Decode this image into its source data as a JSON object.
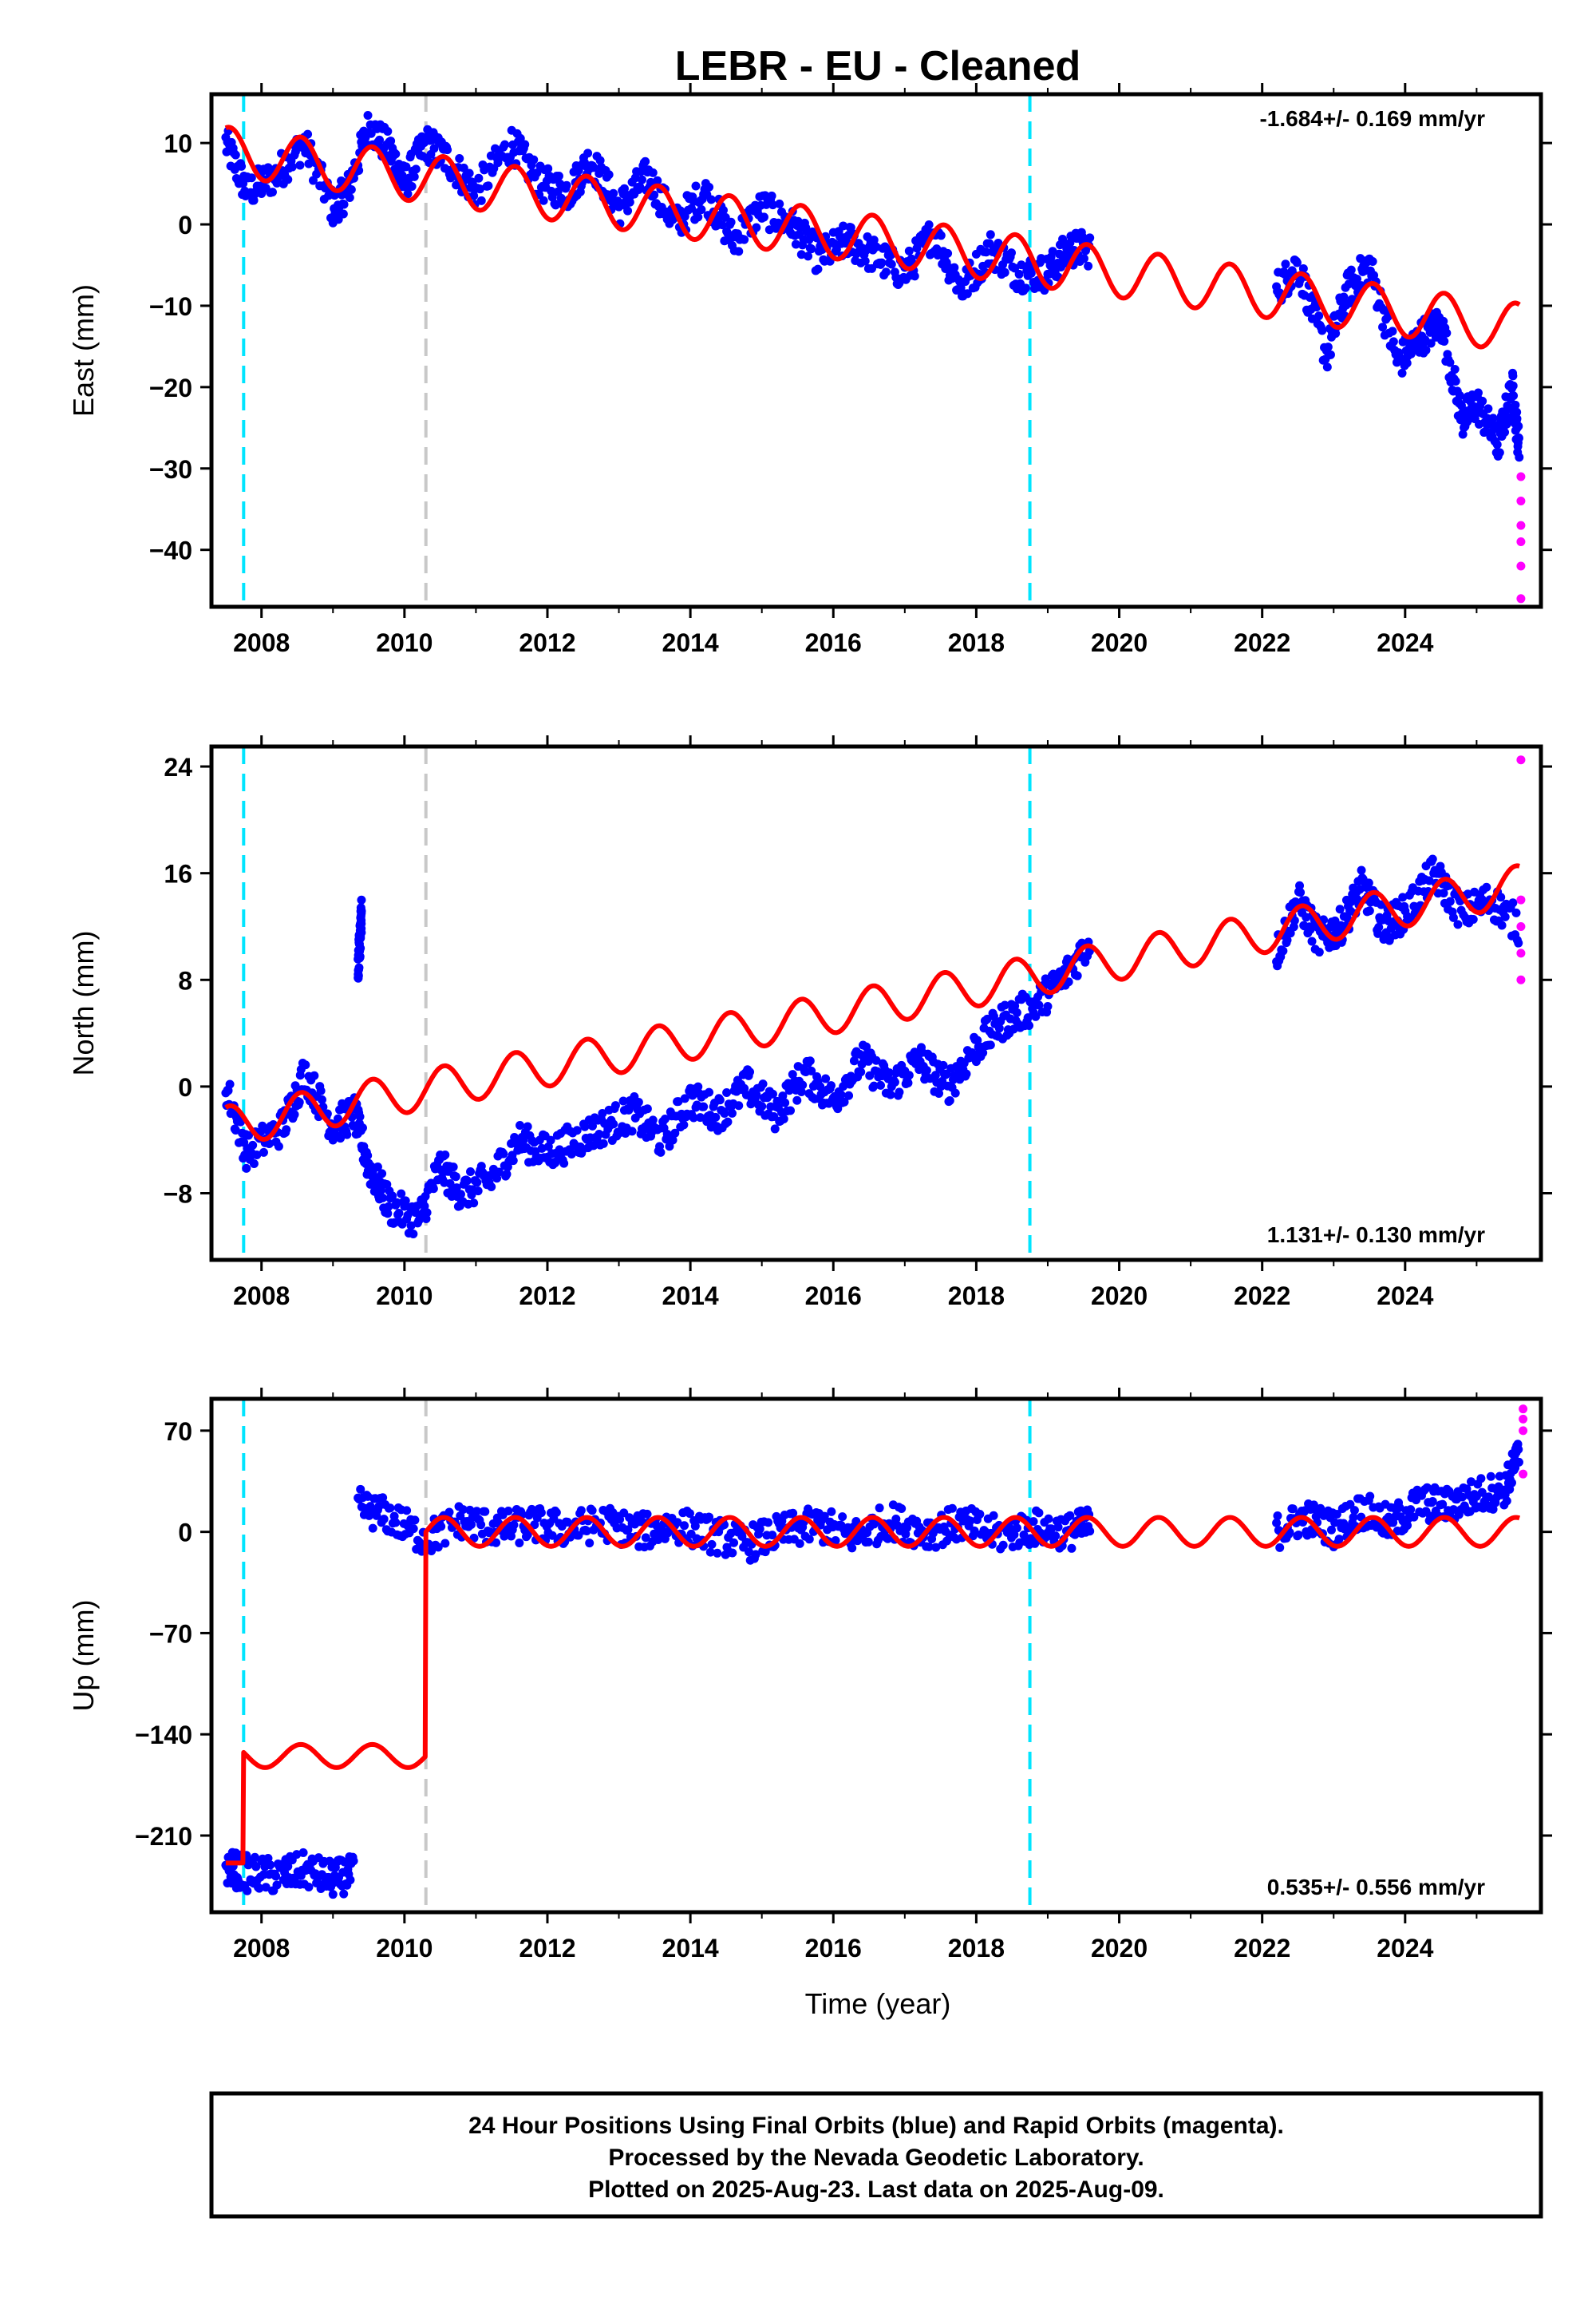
{
  "title": "LEBR  - EU - Cleaned",
  "xlabel": "Time (year)",
  "colors": {
    "final": "#0000ff",
    "rapid": "#ff00ff",
    "model": "#ff0000",
    "antenna": "#00e5ff",
    "offset": "#c8c8c8"
  },
  "chart_data": [
    {
      "type": "scatter",
      "component": "east",
      "ylabel": "East (mm)",
      "xlim": [
        2007.3,
        2025.9
      ],
      "ylim": [
        -47,
        16
      ],
      "xticks": [
        "2008",
        "2010",
        "2012",
        "2014",
        "2016",
        "2018",
        "2020",
        "2022",
        "2024"
      ],
      "yticks": [
        "10",
        "0",
        "−10",
        "−20",
        "−30",
        "−40"
      ],
      "ytick_values": [
        10,
        0,
        -10,
        -20,
        -30,
        -40
      ],
      "rate": "-1.684+/- 0.169 mm/yr",
      "rate_pos": "top-right",
      "antenna_changes": [
        2007.75,
        2018.75
      ],
      "offsets": [
        2010.3
      ],
      "final_segments": [
        {
          "x": [
            2007.5,
            2007.8,
            2008.2,
            2008.6,
            2009.0,
            2009.2,
            2009.5,
            2009.8,
            2010.0,
            2010.3,
            2010.6,
            2011.0,
            2011.5,
            2011.9,
            2012.3,
            2012.6,
            2013.0,
            2013.4,
            2013.8,
            2014.2,
            2014.6,
            2015.0,
            2015.4,
            2015.8,
            2016.2,
            2016.6,
            2017.0,
            2017.4,
            2017.8,
            2018.2,
            2018.6,
            2019.0,
            2019.3,
            2019.6
          ],
          "y": [
            10,
            4,
            6,
            10,
            2,
            4,
            12,
            9,
            5,
            10,
            8,
            4,
            10,
            5,
            4,
            8,
            2,
            6,
            0,
            4,
            -2,
            2,
            0,
            -4,
            -2,
            -4,
            -6,
            -1,
            -8,
            -3,
            -6,
            -6,
            -3,
            -3
          ]
        },
        {
          "x": [
            2022.2,
            2022.5,
            2022.9,
            2023.2,
            2023.5,
            2023.9,
            2024.2,
            2024.5,
            2024.8,
            2025.0,
            2025.3,
            2025.5,
            2025.6
          ],
          "y": [
            -8,
            -5,
            -16,
            -8,
            -5,
            -17,
            -14,
            -12,
            -24,
            -22,
            -27,
            -20,
            -28
          ]
        }
      ],
      "rapid_points": {
        "x": [
          2025.62,
          2025.62,
          2025.62,
          2025.62,
          2025.62,
          2025.62
        ],
        "y": [
          -31,
          -34,
          -37,
          -39,
          -42,
          -46
        ]
      },
      "model_line": {
        "start": 2007.5,
        "end": 2025.6,
        "y0": 9,
        "amplitude": 3,
        "trend_mm_per_yr": -1.2
      }
    },
    {
      "type": "scatter",
      "component": "north",
      "ylabel": "North (mm)",
      "xlim": [
        2007.3,
        2025.9
      ],
      "ylim": [
        -13,
        25.5
      ],
      "xticks": [
        "2008",
        "2010",
        "2012",
        "2014",
        "2016",
        "2018",
        "2020",
        "2022",
        "2024"
      ],
      "yticks": [
        "24",
        "16",
        "8",
        "0",
        "−8"
      ],
      "ytick_values": [
        24,
        16,
        8,
        0,
        -8
      ],
      "rate": "1.131+/- 0.130 mm/yr",
      "rate_pos": "bottom-right",
      "antenna_changes": [
        2007.75,
        2018.75
      ],
      "offsets": [
        2010.3
      ],
      "final_segments": [
        {
          "x": [
            2007.5,
            2007.8,
            2008.3,
            2008.6,
            2009.0,
            2009.3,
            2009.5,
            2009.8,
            2010.2,
            2010.5,
            2010.8,
            2011.2,
            2011.6,
            2012.0,
            2012.4,
            2012.8,
            2013.2,
            2013.6,
            2014.0,
            2014.4,
            2014.8,
            2015.2,
            2015.6,
            2016.0,
            2016.4,
            2016.8,
            2017.2,
            2017.6,
            2018.0,
            2018.4,
            2018.8,
            2019.2,
            2019.6
          ],
          "y": [
            0,
            -5,
            -3,
            1,
            -3,
            -2,
            -6,
            -9,
            -10,
            -6,
            -8,
            -7,
            -4,
            -5,
            -4,
            -3,
            -2,
            -4,
            -1,
            -2,
            0,
            -2,
            1,
            -1,
            2,
            0,
            2,
            0,
            3,
            5,
            6,
            8,
            11
          ]
        },
        {
          "x": [
            2022.2,
            2022.5,
            2022.8,
            2023.1,
            2023.4,
            2023.7,
            2024.0,
            2024.4,
            2024.8,
            2025.2,
            2025.6
          ],
          "y": [
            10,
            14,
            11,
            12,
            15,
            12,
            13,
            16,
            13,
            14,
            12
          ]
        },
        {
          "x": [
            2009.35,
            2009.38,
            2009.4
          ],
          "y": [
            9,
            11,
            13
          ]
        }
      ],
      "rapid_points": {
        "x": [
          2025.62,
          2025.62,
          2025.62,
          2025.62,
          2025.62
        ],
        "y": [
          24.5,
          14,
          12,
          10,
          8
        ]
      },
      "model_line": {
        "start": 2007.5,
        "end": 2025.6,
        "y0": -3,
        "amplitude": 1.5,
        "trend_mm_per_yr": 1.0
      }
    },
    {
      "type": "scatter",
      "component": "up",
      "ylabel": "Up (mm)",
      "xlim": [
        2007.3,
        2025.9
      ],
      "ylim": [
        -263,
        92
      ],
      "xticks": [
        "2008",
        "2010",
        "2012",
        "2014",
        "2016",
        "2018",
        "2020",
        "2022",
        "2024"
      ],
      "yticks": [
        "70",
        "0",
        "−70",
        "−140",
        "−210"
      ],
      "ytick_values": [
        70,
        0,
        -70,
        -140,
        -210
      ],
      "rate": "0.535+/- 0.556 mm/yr",
      "rate_pos": "bottom-right",
      "antenna_changes": [
        2007.75,
        2018.75
      ],
      "offsets": [
        2010.3
      ],
      "final_segments": [
        {
          "x": [
            2007.5,
            2007.8,
            2008.2,
            2008.6,
            2009.0,
            2009.3
          ],
          "y": [
            -232,
            -236,
            -238,
            -234,
            -240,
            -236
          ]
        },
        {
          "x": [
            2009.35,
            2009.8,
            2010.3,
            2010.8,
            2011.3,
            2011.8,
            2012.3,
            2012.8,
            2013.3,
            2013.8,
            2014.3,
            2014.8,
            2015.3,
            2015.8,
            2016.3,
            2016.8,
            2017.3,
            2017.8,
            2018.3,
            2018.8,
            2019.3,
            2019.6
          ],
          "y": [
            18,
            10,
            -5,
            8,
            2,
            5,
            2,
            6,
            0,
            5,
            -2,
            -8,
            0,
            5,
            -3,
            8,
            0,
            6,
            -2,
            3,
            0,
            5
          ]
        },
        {
          "x": [
            2022.2,
            2022.6,
            2023.0,
            2023.4,
            2023.8,
            2024.2,
            2024.6,
            2025.0,
            2025.4,
            2025.6
          ],
          "y": [
            0,
            10,
            2,
            15,
            5,
            20,
            18,
            25,
            30,
            55
          ]
        }
      ],
      "rapid_points": {
        "x": [
          2025.65,
          2025.65,
          2025.65,
          2025.65
        ],
        "y": [
          85,
          78,
          70,
          40
        ]
      },
      "model_line": {
        "segments": [
          {
            "start": 2007.5,
            "end": 2007.75,
            "base": -229,
            "amplitude": 0
          },
          {
            "start": 2007.75,
            "end": 2010.3,
            "base": -155,
            "amplitude": 8
          },
          {
            "start": 2010.3,
            "end": 2025.6,
            "base": 0,
            "amplitude": 10
          }
        ]
      }
    }
  ],
  "footer": {
    "line1": "24 Hour Positions Using Final Orbits (blue) and Rapid Orbits (magenta).",
    "line2": "Processed by the Nevada Geodetic Laboratory.",
    "line3": "Plotted on 2025-Aug-23. Last data on 2025-Aug-09."
  }
}
